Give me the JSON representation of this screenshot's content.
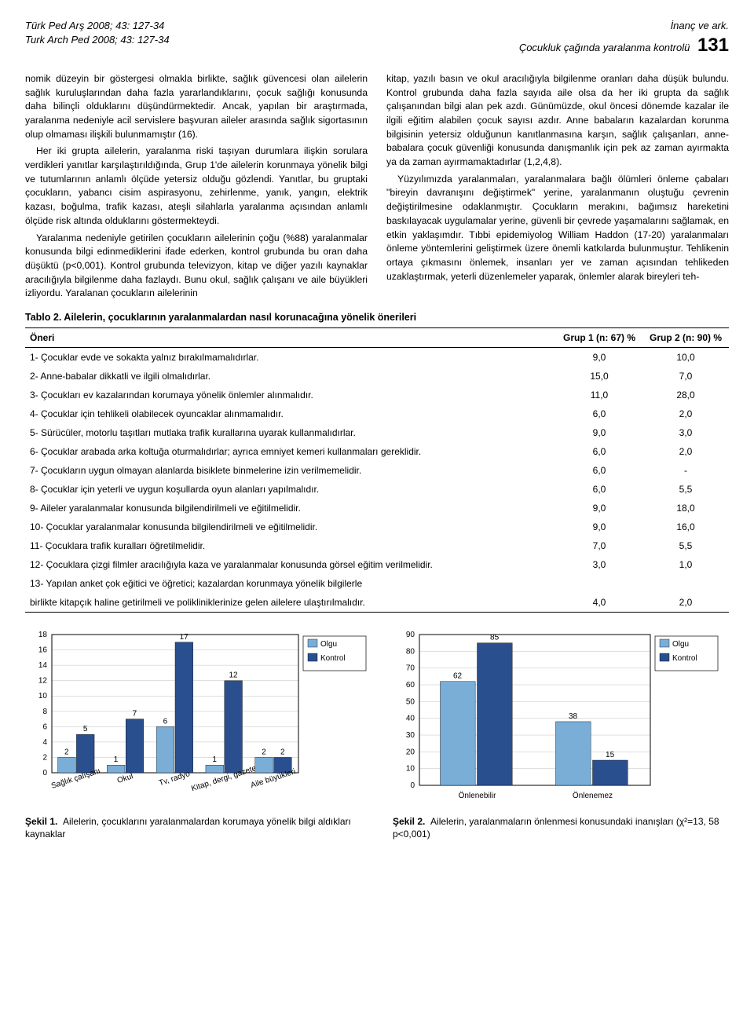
{
  "header": {
    "left_line1": "Türk Ped Arş 2008; 43: 127-34",
    "left_line2": "Turk Arch Ped 2008; 43: 127-34",
    "right_line1": "İnanç ve ark.",
    "right_line2": "Çocukluk çağında yaralanma kontrolü",
    "page_number": "131"
  },
  "body": {
    "col_left_p1": "nomik düzeyin bir göstergesi olmakla birlikte, sağlık güvencesi olan ailelerin sağlık kuruluşlarından daha fazla yararlandıklarını, çocuk sağlığı konusunda daha bilinçli olduklarını düşündürmektedir. Ancak, yapılan bir araştırmada, yaralanma nedeniyle acil servislere başvuran aileler arasında sağlık sigortasının olup olmaması ilişkili bulunmamıştır (16).",
    "col_left_p2": "Her iki grupta ailelerin, yaralanma riski taşıyan durumlara ilişkin sorulara verdikleri yanıtlar karşılaştırıldığında, Grup 1'de ailelerin korunmaya yönelik bilgi ve tutumlarının anlamlı ölçüde yetersiz olduğu gözlendi. Yanıtlar, bu gruptaki çocukların, yabancı cisim aspirasyonu, zehirlenme, yanık, yangın, elektrik kazası, boğulma, trafik kazası, ateşli silahlarla yaralanma açısından anlamlı ölçüde risk altında olduklarını göstermekteydi.",
    "col_left_p3": "Yaralanma nedeniyle getirilen çocukların ailelerinin çoğu (%88) yaralanmalar konusunda bilgi edinmediklerini ifade ederken, kontrol grubunda bu oran daha düşüktü (p<0,001). Kontrol grubunda televizyon, kitap ve diğer yazılı kaynaklar aracılığıyla bilgilenme daha fazlaydı. Bunu okul, sağlık çalışanı ve aile büyükleri izliyordu. Yaralanan çocukların ailelerinin",
    "col_right_p1": "kitap, yazılı basın ve okul aracılığıyla bilgilenme oranları daha düşük bulundu. Kontrol grubunda daha fazla sayıda aile olsa da her iki grupta da sağlık çalışanından bilgi alan pek azdı. Günümüzde, okul öncesi dönemde kazalar ile ilgili eğitim alabilen çocuk sayısı azdır. Anne babaların kazalardan korunma bilgisinin yetersiz olduğunun kanıtlanmasına karşın, sağlık çalışanları, anne-babalara çocuk güvenliği konusunda danışmanlık için pek az zaman ayırmakta ya da zaman ayırmamaktadırlar (1,2,4,8).",
    "col_right_p2": "Yüzyılımızda yaralanmaları, yaralanmalara bağlı ölümleri önleme çabaları \"bireyin davranışını değiştirmek\" yerine, yaralanmanın oluştuğu çevrenin değiştirilmesine odaklanmıştır. Çocukların merakını, bağımsız hareketini baskılayacak uygulamalar yerine, güvenli bir çevrede yaşamalarını sağlamak, en etkin yaklaşımdır. Tıbbi epidemiyolog William Haddon (17-20) yaralanmaları önleme yöntemlerini geliştirmek üzere önemli katkılarda bulunmuştur. Tehlikenin ortaya çıkmasını önlemek, insanları yer ve zaman açısından tehlikeden uzaklaştırmak, yeterli düzenlemeler yaparak, önlemler alarak bireyleri teh-"
  },
  "tablo2": {
    "title": "Tablo 2. Ailelerin, çocuklarının yaralanmalardan nasıl korunacağına yönelik önerileri",
    "col1": "Öneri",
    "col2": "Grup 1  (n: 67)  %",
    "col3": "Grup 2  (n: 90) %",
    "rows": [
      {
        "label": "1- Çocuklar evde ve sokakta yalnız bırakılmamalıdırlar.",
        "g1": "9,0",
        "g2": "10,0"
      },
      {
        "label": "2- Anne-babalar dikkatli ve ilgili olmalıdırlar.",
        "g1": "15,0",
        "g2": "7,0"
      },
      {
        "label": "3- Çocukları ev kazalarından korumaya yönelik önlemler alınmalıdır.",
        "g1": "11,0",
        "g2": "28,0"
      },
      {
        "label": "4- Çocuklar için tehlikeli olabilecek oyuncaklar alınmamalıdır.",
        "g1": "6,0",
        "g2": "2,0"
      },
      {
        "label": "5- Sürücüler, motorlu taşıtları mutlaka trafik kurallarına uyarak kullanmalıdırlar.",
        "g1": "9,0",
        "g2": "3,0"
      },
      {
        "label": "6- Çocuklar arabada arka koltuğa oturmalıdırlar; ayrıca emniyet kemeri kullanmaları gereklidir.",
        "g1": "6,0",
        "g2": "2,0"
      },
      {
        "label": "7- Çocukların uygun olmayan alanlarda bisiklete binmelerine izin verilmemelidir.",
        "g1": "6,0",
        "g2": "-"
      },
      {
        "label": "8- Çocuklar için yeterli ve uygun koşullarda oyun alanları yapılmalıdır.",
        "g1": "6,0",
        "g2": "5,5"
      },
      {
        "label": "9- Aileler yaralanmalar konusunda bilgilendirilmeli ve eğitilmelidir.",
        "g1": "9,0",
        "g2": "18,0"
      },
      {
        "label": "10- Çocuklar yaralanmalar konusunda bilgilendirilmeli ve eğitilmelidir.",
        "g1": "9,0",
        "g2": "16,0"
      },
      {
        "label": "11- Çocuklara trafik kuralları öğretilmelidir.",
        "g1": "7,0",
        "g2": "5,5"
      },
      {
        "label": "12- Çocuklara çizgi filmler aracılığıyla kaza ve yaralanmalar konusunda görsel eğitim verilmelidir.",
        "g1": "3,0",
        "g2": "1,0"
      },
      {
        "label": "13- Yapılan anket çok eğitici ve öğretici; kazalardan korunmaya yönelik bilgilerle",
        "g1": "",
        "g2": ""
      },
      {
        "label": "birlikte kitapçık haline getirilmeli ve polikliniklerinize gelen ailelere ulaştırılmalıdır.",
        "g1": "4,0",
        "g2": "2,0",
        "indent": true
      }
    ]
  },
  "chart1": {
    "type": "bar-grouped",
    "categories": [
      "Sağlık çalışanı",
      "Okul",
      "Tv, radyo",
      "Kitap, dergi, gazete",
      "Aile büyükleri"
    ],
    "series": [
      {
        "name": "Olgu",
        "color": "#7aaed6",
        "values": [
          2,
          1,
          6,
          1,
          2
        ]
      },
      {
        "name": "Kontrol",
        "color": "#2a4f8f",
        "values": [
          5,
          7,
          17,
          12,
          2
        ]
      }
    ],
    "ylim": [
      0,
      18
    ],
    "ytick_step": 2,
    "bg": "#ffffff",
    "bar_width": 0.38,
    "caption_b": "Şekil 1.",
    "caption": "Ailelerin, çocuklarını yaralanmalardan korumaya yönelik bilgi aldıkları kaynaklar"
  },
  "chart2": {
    "type": "bar-grouped",
    "categories": [
      "Önlenebilir",
      "Önlenemez"
    ],
    "series": [
      {
        "name": "Olgu",
        "color": "#7aaed6",
        "values": [
          62,
          38
        ]
      },
      {
        "name": "Kontrol",
        "color": "#2a4f8f",
        "values": [
          85,
          15
        ]
      }
    ],
    "ylim": [
      0,
      90
    ],
    "ytick_step": 10,
    "bg": "#ffffff",
    "bar_width": 0.32,
    "caption_b": "Şekil 2.",
    "caption": "Ailelerin, yaralanmaların önlenmesi konusundaki inanışları (χ²=13, 58  p<0,001)"
  }
}
